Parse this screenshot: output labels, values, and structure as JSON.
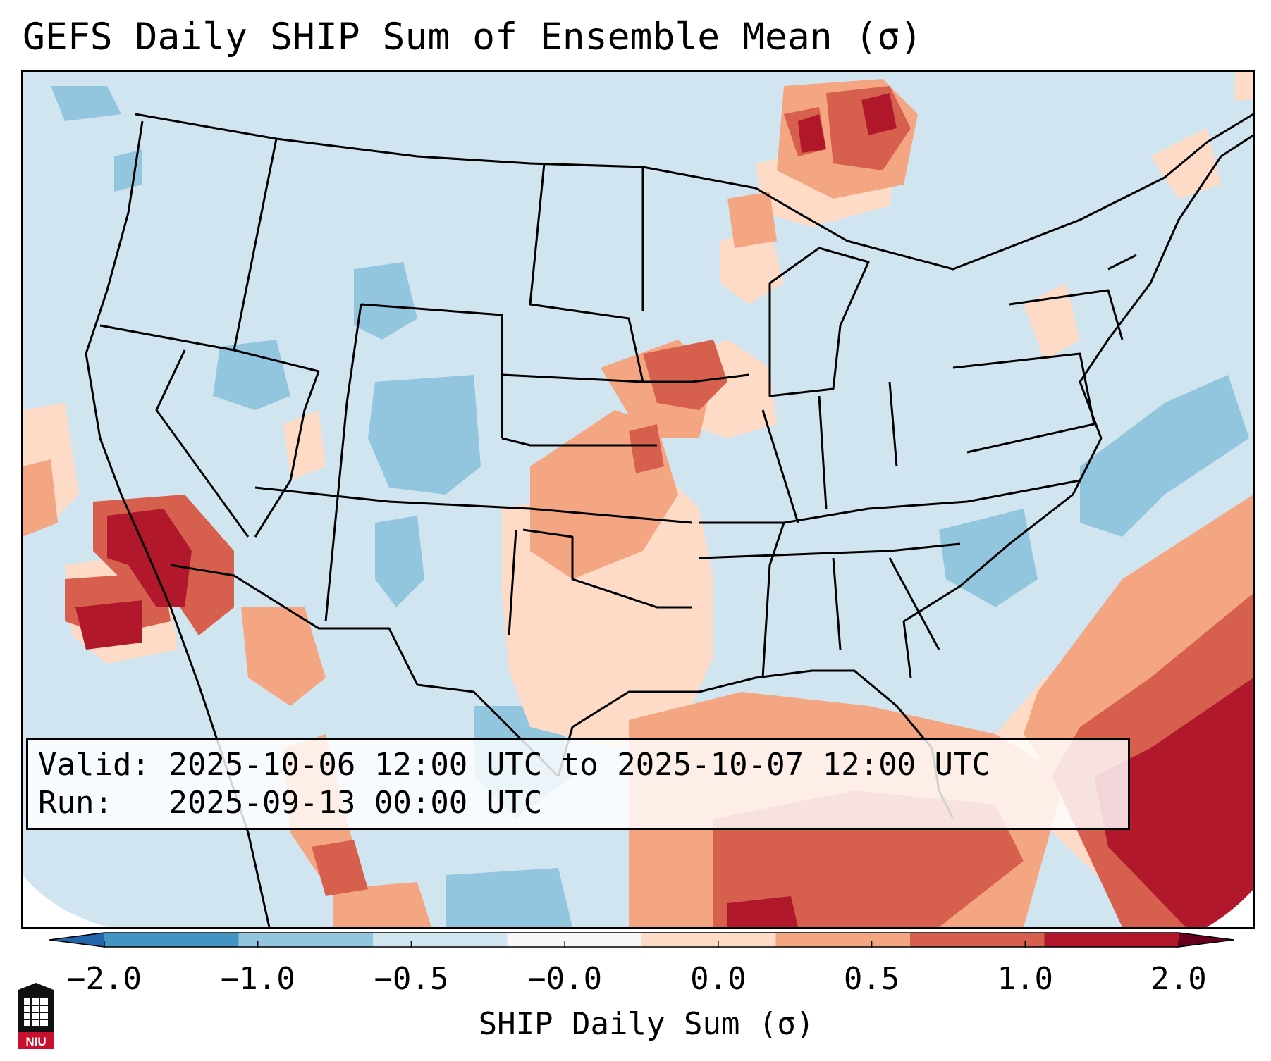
{
  "title": "GEFS Daily SHIP Sum of Ensemble Mean (σ)",
  "info": {
    "valid_label": "Valid:",
    "valid_value": "2025-10-06 12:00 UTC to 2025-10-07 12:00 UTC",
    "run_label": "Run:",
    "run_value": "2025-09-13 00:00 UTC"
  },
  "colorbar": {
    "xlabel": "SHIP Daily Sum (σ)",
    "ticks": [
      "−2.0",
      "−1.0",
      "−0.5",
      "−0.0",
      "0.0",
      "0.5",
      "1.0",
      "2.0"
    ],
    "colors": [
      "#4393c3",
      "#92c5de",
      "#d1e5f0",
      "#f7f7f7",
      "#fddbc7",
      "#f4a582",
      "#d6604d",
      "#b2182b"
    ],
    "under_color": "#2166ac",
    "over_color": "#67001f"
  },
  "logo": {
    "text": "NIU",
    "color": "#c8102e"
  }
}
